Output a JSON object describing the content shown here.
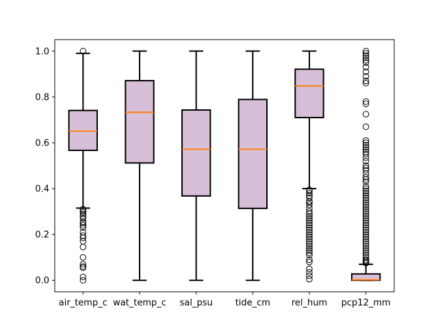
{
  "chart_data": {
    "type": "boxplot",
    "title": "",
    "xlabel": "",
    "ylabel": "",
    "ylim": [
      -0.05,
      1.05
    ],
    "yticks": [
      0.0,
      0.2,
      0.4,
      0.6,
      0.8,
      1.0
    ],
    "ytick_labels": [
      "0.0",
      "0.2",
      "0.4",
      "0.6",
      "0.8",
      "1.0"
    ],
    "grid": false,
    "legend": "none",
    "colors": {
      "box_fill": "#d8bfd8",
      "box_edge": "#000000",
      "median": "#ff7f0e",
      "flier": "#000000"
    },
    "series": [
      {
        "name": "air_temp_c",
        "whislo": 0.315,
        "q1": 0.567,
        "med": 0.651,
        "q3": 0.741,
        "whishi": 0.99,
        "fliers": [
          1.0,
          0.31,
          0.305,
          0.298,
          0.29,
          0.28,
          0.27,
          0.255,
          0.25,
          0.24,
          0.23,
          0.21,
          0.195,
          0.185,
          0.17,
          0.145,
          0.1,
          0.07,
          0.06,
          0.055,
          0.015,
          0.0
        ]
      },
      {
        "name": "wat_temp_c",
        "whislo": 0.0,
        "q1": 0.512,
        "med": 0.733,
        "q3": 0.871,
        "whishi": 1.0,
        "fliers": []
      },
      {
        "name": "sal_psu",
        "whislo": 0.0,
        "q1": 0.368,
        "med": 0.572,
        "q3": 0.743,
        "whishi": 1.0,
        "fliers": []
      },
      {
        "name": "tide_cm",
        "whislo": 0.0,
        "q1": 0.314,
        "med": 0.572,
        "q3": 0.789,
        "whishi": 1.0,
        "fliers": []
      },
      {
        "name": "rel_hum",
        "whislo": 0.4,
        "q1": 0.71,
        "med": 0.848,
        "q3": 0.921,
        "whishi": 1.0,
        "fliers": [
          0.395,
          0.39,
          0.38,
          0.37,
          0.36,
          0.345,
          0.34,
          0.33,
          0.315,
          0.3,
          0.29,
          0.28,
          0.27,
          0.26,
          0.25,
          0.24,
          0.23,
          0.22,
          0.21,
          0.2,
          0.19,
          0.18,
          0.17,
          0.16,
          0.15,
          0.14,
          0.13,
          0.12,
          0.11,
          0.09,
          0.08,
          0.05,
          0.035,
          0.02,
          0.005
        ]
      },
      {
        "name": "pcp12_mm",
        "whislo": 0.0,
        "q1": 0.0,
        "med": 0.002,
        "q3": 0.028,
        "whishi": 0.07,
        "fliers": [
          1.0,
          0.99,
          0.98,
          0.97,
          0.96,
          0.95,
          0.93,
          0.91,
          0.89,
          0.87,
          0.86,
          0.78,
          0.77,
          0.725,
          0.67,
          0.61,
          0.6,
          0.59,
          0.58,
          0.57,
          0.56,
          0.55,
          0.535,
          0.52,
          0.5,
          0.49,
          0.48,
          0.465,
          0.45,
          0.44,
          0.43,
          0.41,
          0.4,
          0.39,
          0.38,
          0.37,
          0.36,
          0.35,
          0.34,
          0.33,
          0.32,
          0.31,
          0.3,
          0.29,
          0.28,
          0.27,
          0.26,
          0.25,
          0.24,
          0.23,
          0.22,
          0.21,
          0.2,
          0.19,
          0.18,
          0.17,
          0.16,
          0.15,
          0.14,
          0.13,
          0.12,
          0.11,
          0.1,
          0.09,
          0.085,
          0.08,
          0.075
        ]
      }
    ]
  }
}
